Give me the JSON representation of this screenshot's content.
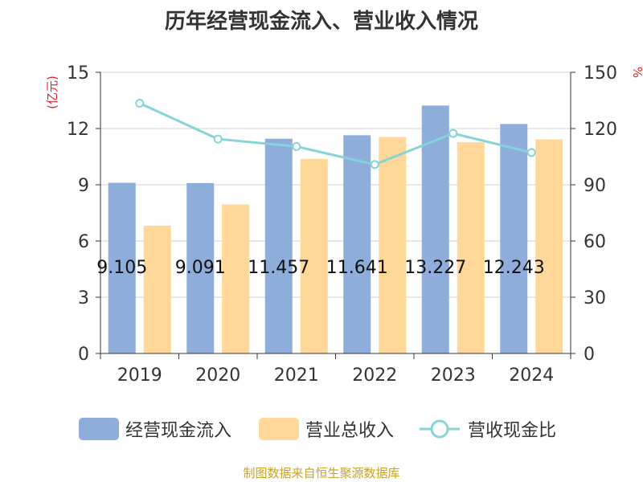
{
  "colors": {
    "cash_inflow": "#8eaddb",
    "revenue": "#ffd899",
    "ratio_line": "#86d3d8",
    "axis_unit": "#e0242b",
    "text": "#333333",
    "source": "#c9a227"
  },
  "chart_data": {
    "type": "bar",
    "title": "历年经营现金流入、营业收入情况",
    "categories": [
      "2019",
      "2020",
      "2021",
      "2022",
      "2023",
      "2024"
    ],
    "y_left": {
      "unit": "(亿元)",
      "ylim": [
        0,
        15
      ],
      "ticks": [
        0,
        3,
        6,
        9,
        12,
        15
      ]
    },
    "y_right": {
      "unit": "%",
      "ylim": [
        0,
        150
      ],
      "ticks": [
        0,
        30,
        60,
        90,
        120,
        150
      ]
    },
    "series": [
      {
        "name": "经营现金流入",
        "type": "bar",
        "axis": "left",
        "values": [
          9.105,
          9.091,
          11.457,
          11.641,
          13.227,
          12.243
        ],
        "labels": [
          "9.105",
          "9.091",
          "11.457",
          "11.641",
          "13.227",
          "12.243"
        ]
      },
      {
        "name": "营业总收入",
        "type": "bar",
        "axis": "left",
        "values": [
          6.82,
          7.95,
          10.38,
          11.55,
          11.27,
          11.42
        ]
      },
      {
        "name": "营收现金比",
        "type": "line",
        "axis": "right",
        "values": [
          133.5,
          114.4,
          110.4,
          100.8,
          117.4,
          107.2
        ]
      }
    ],
    "grid": true,
    "legend_position": "bottom"
  },
  "legend": {
    "items": [
      {
        "label": "经营现金流入"
      },
      {
        "label": "营业总收入"
      },
      {
        "label": "营收现金比"
      }
    ]
  },
  "source_note": "制图数据来自恒生聚源数据库"
}
